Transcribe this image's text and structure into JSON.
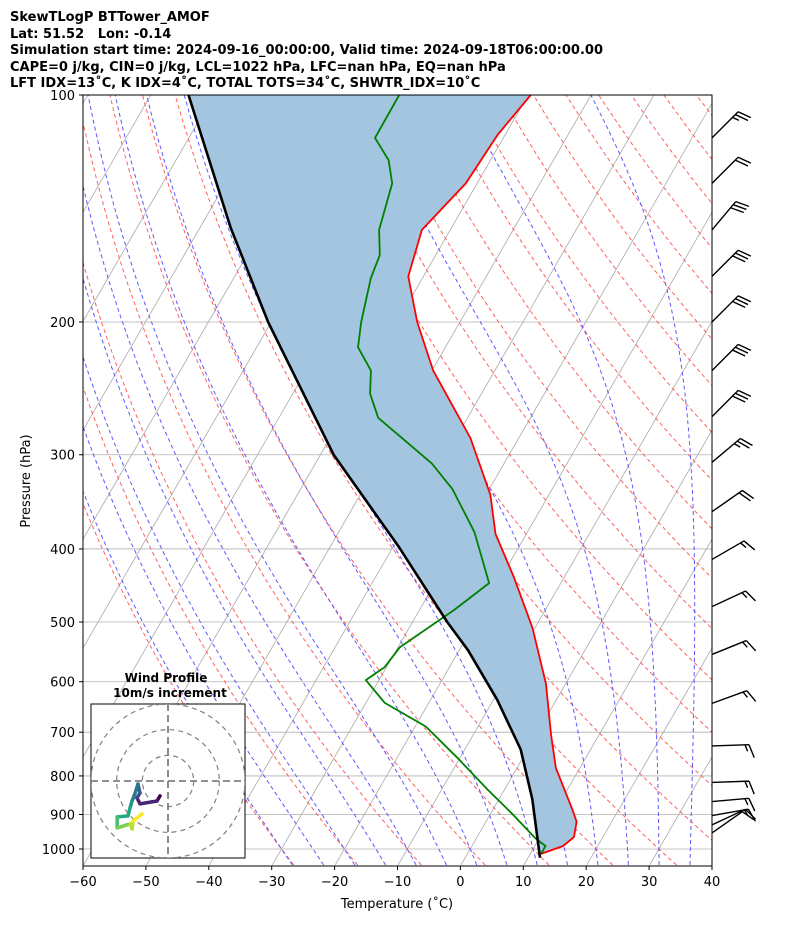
{
  "chart_data": {
    "type": "line",
    "subtype": "skew-t log-p",
    "title_lines": [
      "SkewTLogP BTTower_AMOF",
      "Lat: 51.52   Lon: -0.14",
      "Simulation start time: 2024-09-16_00:00:00, Valid time: 2024-09-18T06:00:00.00",
      "CAPE=0 j/kg, CIN=0 j/kg, LCL=1022 hPa, LFC=nan hPa, EQ=nan hPa",
      "LFT IDX=13$^\\circ$C, K IDX=4$^\\circ$C, TOTAL TOTS=34$^\\circ$C, SHWTR_IDX=10$^\\circ$C"
    ],
    "title_display": [
      "SkewTLogP BTTower_AMOF",
      "Lat: 51.52   Lon: -0.14",
      "Simulation start time: 2024-09-16_00:00:00, Valid time: 2024-09-18T06:00:00.00",
      "CAPE=0 j/kg, CIN=0 j/kg, LCL=1022 hPa, LFC=nan hPa, EQ=nan hPa",
      "LFT IDX=13˚C, K IDX=4˚C, TOTAL TOTS=34˚C, SHWTR_IDX=10˚C"
    ],
    "xlabel": "Temperature (˚C)",
    "ylabel": "Pressure (hPa)",
    "xlim": [
      -60,
      40
    ],
    "ylim": [
      1050,
      100
    ],
    "skew_deg": 30,
    "xticks": [
      -60,
      -50,
      -40,
      -30,
      -20,
      -10,
      0,
      10,
      20,
      30,
      40
    ],
    "yticks": [
      100,
      200,
      300,
      400,
      500,
      600,
      700,
      800,
      900,
      1000
    ],
    "grid": true,
    "series": [
      {
        "name": "Temperature",
        "color": "#ff0000",
        "p": [
          100,
          113,
          131,
          151,
          174,
          200,
          232,
          285,
          339,
          382,
          436,
          509,
          604,
          706,
          781,
          888,
          920,
          964,
          991,
          1015
        ],
        "T": [
          -59.6,
          -61.2,
          -61.8,
          -64.5,
          -62.4,
          -56.8,
          -49.8,
          -37.7,
          -29.3,
          -24.9,
          -18.0,
          -10.4,
          -3.1,
          2.4,
          6.2,
          12.7,
          14.4,
          15.4,
          14.5,
          11.7
        ]
      },
      {
        "name": "Dewpoint",
        "color": "#008000",
        "p": [
          100,
          114,
          122,
          131,
          151,
          163,
          175,
          200,
          216,
          232,
          249,
          268,
          308,
          333,
          380,
          444,
          482,
          540,
          574,
          597,
          640,
          688,
          757,
          835,
          902,
          967,
          991,
          1015
        ],
        "T": [
          -80.5,
          -80.4,
          -76.2,
          -73.5,
          -71.3,
          -68.9,
          -68.2,
          -65.7,
          -63.9,
          -59.7,
          -57.7,
          -54.2,
          -41.5,
          -35.9,
          -28.4,
          -21.4,
          -24.5,
          -29.7,
          -30.3,
          -32.1,
          -27.0,
          -18.3,
          -10.4,
          -2.6,
          3.8,
          9.3,
          11.7,
          11.7
        ]
      },
      {
        "name": "Parcel",
        "color": "#000000",
        "p": [
          100,
          150,
          200,
          300,
          398,
          500,
          545,
          634,
          738,
          859,
          1027
        ],
        "T": [
          -114.0,
          -95.1,
          -80.5,
          -57.9,
          -39.0,
          -24.5,
          -18.6,
          -9.4,
          -1.1,
          5.3,
          11.9
        ]
      }
    ],
    "fill_between": {
      "between": [
        "Parcel",
        "Temperature"
      ],
      "color": "#a3c5df"
    },
    "background_lines": {
      "isotherms_step": 10,
      "isotherm_color": "#aaaaaa",
      "dry_adiabat_theta0_C": [
        -30,
        -20,
        -10,
        0,
        10,
        20,
        30,
        40,
        50,
        60,
        70,
        80,
        90,
        100,
        110,
        120,
        130,
        140,
        150,
        160,
        170,
        180,
        190,
        200
      ],
      "dry_adiabat_color": "#ff6060",
      "moist_adiabat_T0_C": [
        -30,
        -25,
        -20,
        -15,
        -10,
        -5,
        0,
        5,
        10,
        15,
        20,
        25,
        30,
        35,
        40
      ],
      "moist_adiabat_color": "#5a5aff"
    },
    "wind_barbs": {
      "units": "knots",
      "p": [
        114,
        131,
        151,
        174,
        200,
        232,
        267,
        307,
        357,
        413,
        477,
        552,
        641,
        730,
        816,
        865,
        903,
        929,
        952
      ],
      "direction": [
        45,
        45,
        40,
        45,
        45,
        45,
        45,
        50,
        55,
        60,
        65,
        68,
        70,
        88,
        88,
        85,
        80,
        65,
        55
      ],
      "speed": [
        25,
        20,
        30,
        30,
        30,
        30,
        30,
        25,
        20,
        15,
        15,
        15,
        15,
        15,
        15,
        15,
        15,
        10,
        10
      ]
    },
    "hodograph": {
      "title": "Wind Profile",
      "subtitle": "10m/s increment",
      "ring_step_ms": 10,
      "range_ms": 30,
      "u": [
        -3.1,
        -4.3,
        -10.9,
        -12.1,
        -10.9,
        -11.7,
        -12.8,
        -14.0,
        -14.8,
        -15.6,
        -19.8,
        -19.8,
        -14.8,
        -14.0,
        -13.6,
        -10.1
      ],
      "v": [
        -5.8,
        -7.8,
        -8.9,
        -6.6,
        -4.7,
        -1.2,
        -4.7,
        -7.8,
        -10.5,
        -13.6,
        -14.0,
        -18.3,
        -16.7,
        -18.7,
        -15.6,
        -12.8
      ],
      "colormap": [
        "#440154",
        "#482475",
        "#414487",
        "#355f8d",
        "#2a788e",
        "#21918c",
        "#22a884",
        "#44bf70",
        "#7ad151",
        "#bddf26",
        "#fde725"
      ]
    }
  }
}
